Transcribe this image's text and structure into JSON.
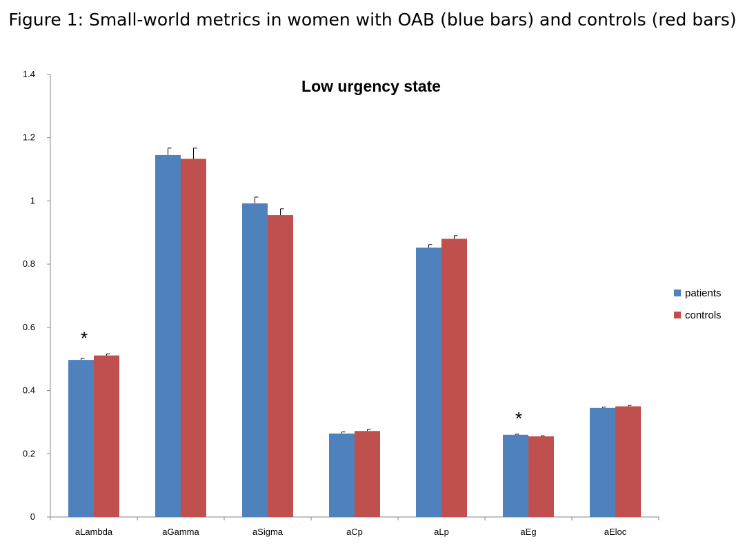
{
  "figure_caption": "Figure 1: Small-world metrics in women with OAB (blue bars) and controls (red bars)",
  "chart_data": {
    "type": "bar",
    "title": "Low urgency state",
    "xlabel": "",
    "ylabel": "",
    "categories": [
      "aLambda",
      "aGamma",
      "aSigma",
      "aCp",
      "aLp",
      "aEg",
      "aEloc"
    ],
    "series": [
      {
        "name": "patients",
        "color": "#4f81bd",
        "values": [
          0.497,
          1.145,
          0.992,
          0.264,
          0.852,
          0.26,
          0.345
        ],
        "errors": [
          0.005,
          0.022,
          0.02,
          0.005,
          0.01,
          0.002,
          0.003
        ]
      },
      {
        "name": "controls",
        "color": "#c0504d",
        "values": [
          0.511,
          1.133,
          0.955,
          0.272,
          0.88,
          0.255,
          0.35
        ],
        "errors": [
          0.005,
          0.034,
          0.02,
          0.005,
          0.01,
          0.002,
          0.003
        ]
      }
    ],
    "ylim": [
      0,
      1.4
    ],
    "yticks": [
      "0",
      "0.2",
      "0.4",
      "0.6",
      "0.8",
      "1",
      "1.2",
      "1.4"
    ],
    "grid": false,
    "legend_position": "right",
    "annotations": [
      {
        "category": "aLambda",
        "text": "*"
      },
      {
        "category": "aEg",
        "text": "*"
      }
    ]
  }
}
